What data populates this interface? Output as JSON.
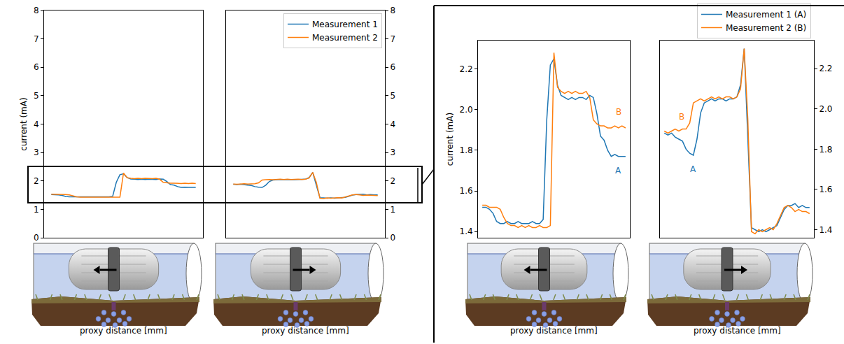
{
  "chart_data": [
    {
      "type": "line",
      "ylabel": "current (mA)",
      "xlabel": "proxy distance [mm]",
      "tick_labels": "y",
      "grid": false,
      "xlim": [
        -5,
        105
      ],
      "ylim": [
        0,
        8
      ],
      "yticks": [
        0,
        1,
        2,
        3,
        4,
        5,
        6,
        7,
        8
      ],
      "x": [
        0,
        2.5,
        5,
        7.5,
        10,
        12.5,
        15,
        17.5,
        20,
        22.5,
        25,
        27.5,
        30,
        32.5,
        35,
        37.5,
        40,
        42.5,
        45,
        47.5,
        50,
        52.5,
        55,
        57.5,
        60,
        62.5,
        65,
        67.5,
        70,
        72.5,
        75,
        77.5,
        80,
        82.5,
        85,
        87.5,
        90,
        92.5,
        95,
        97.5,
        100
      ],
      "series": [
        {
          "color": "#1f77b4",
          "values": [
            1.52,
            1.52,
            1.51,
            1.49,
            1.45,
            1.44,
            1.44,
            1.45,
            1.44,
            1.44,
            1.45,
            1.44,
            1.44,
            1.44,
            1.45,
            1.44,
            1.44,
            1.46,
            1.95,
            2.22,
            2.25,
            2.12,
            2.07,
            2.06,
            2.05,
            2.06,
            2.05,
            2.06,
            2.06,
            2.05,
            2.07,
            2.06,
            1.98,
            1.87,
            1.85,
            1.8,
            1.77,
            1.78,
            1.77,
            1.77,
            1.77
          ]
        },
        {
          "color": "#ff7f0e",
          "values": [
            1.53,
            1.53,
            1.52,
            1.52,
            1.52,
            1.51,
            1.47,
            1.44,
            1.43,
            1.43,
            1.42,
            1.43,
            1.42,
            1.43,
            1.42,
            1.42,
            1.43,
            1.42,
            1.42,
            1.43,
            2.28,
            2.11,
            2.09,
            2.08,
            2.09,
            2.08,
            2.09,
            2.08,
            2.08,
            2.09,
            2.06,
            1.95,
            1.93,
            1.92,
            1.92,
            1.91,
            1.91,
            1.92,
            1.91,
            1.92,
            1.91
          ]
        }
      ]
    },
    {
      "type": "line",
      "xlabel": "proxy distance [mm]",
      "tick_labels": "y",
      "grid": false,
      "legend": "upper right",
      "xlim": [
        -5,
        105
      ],
      "ylim": [
        0,
        8
      ],
      "yticks": [
        0,
        1,
        2,
        3,
        4,
        5,
        6,
        7,
        8
      ],
      "x": [
        0,
        2.5,
        5,
        7.5,
        10,
        12.5,
        15,
        17.5,
        20,
        22.5,
        25,
        27.5,
        30,
        32.5,
        35,
        37.5,
        40,
        42.5,
        45,
        47.5,
        50,
        52.5,
        55,
        57.5,
        60,
        62.5,
        65,
        67.5,
        70,
        72.5,
        75,
        77.5,
        80,
        82.5,
        85,
        87.5,
        90,
        92.5,
        95,
        97.5,
        100
      ],
      "series": [
        {
          "name": "Measurement 1",
          "color": "#1f77b4",
          "values": [
            1.88,
            1.87,
            1.88,
            1.86,
            1.85,
            1.84,
            1.8,
            1.78,
            1.77,
            1.85,
            1.98,
            2.03,
            2.04,
            2.05,
            2.04,
            2.05,
            2.05,
            2.04,
            2.05,
            2.05,
            2.06,
            2.12,
            2.3,
            1.85,
            1.41,
            1.4,
            1.39,
            1.4,
            1.39,
            1.4,
            1.41,
            1.42,
            1.46,
            1.5,
            1.52,
            1.52,
            1.53,
            1.51,
            1.52,
            1.51,
            1.51
          ]
        },
        {
          "name": "Measurement 2",
          "color": "#ff7f0e",
          "values": [
            1.89,
            1.88,
            1.89,
            1.9,
            1.89,
            1.9,
            1.9,
            1.93,
            2.03,
            2.04,
            2.05,
            2.04,
            2.05,
            2.06,
            2.05,
            2.06,
            2.05,
            2.06,
            2.06,
            2.05,
            2.06,
            2.1,
            2.3,
            1.95,
            1.39,
            1.38,
            1.4,
            1.39,
            1.4,
            1.41,
            1.4,
            1.43,
            1.47,
            1.51,
            1.52,
            1.51,
            1.49,
            1.5,
            1.49,
            1.49,
            1.48
          ]
        }
      ]
    },
    {
      "type": "line",
      "ylabel": "current (mA)",
      "xlabel": "proxy distance [mm]",
      "tick_labels": "y",
      "grid": false,
      "xlim": [
        -3,
        103
      ],
      "ylim": [
        1.37,
        2.34
      ],
      "yticks": [
        1.4,
        1.6,
        1.8,
        {
          "value": 2,
          "label": "2.0"
        },
        2.2
      ],
      "x": [
        0,
        2.5,
        5,
        7.5,
        10,
        12.5,
        15,
        17.5,
        20,
        22.5,
        25,
        27.5,
        30,
        32.5,
        35,
        37.5,
        40,
        42.5,
        45,
        47.5,
        50,
        52.5,
        55,
        57.5,
        60,
        62.5,
        65,
        67.5,
        70,
        72.5,
        75,
        77.5,
        80,
        82.5,
        85,
        87.5,
        90,
        92.5,
        95,
        97.5,
        100
      ],
      "series": [
        {
          "color": "#1f77b4",
          "values": [
            1.52,
            1.52,
            1.51,
            1.49,
            1.45,
            1.44,
            1.44,
            1.45,
            1.44,
            1.44,
            1.45,
            1.44,
            1.44,
            1.44,
            1.45,
            1.44,
            1.44,
            1.46,
            1.95,
            2.22,
            2.25,
            2.12,
            2.07,
            2.06,
            2.05,
            2.06,
            2.05,
            2.06,
            2.06,
            2.05,
            2.07,
            2.06,
            1.98,
            1.87,
            1.85,
            1.8,
            1.77,
            1.78,
            1.77,
            1.77,
            1.77
          ]
        },
        {
          "color": "#ff7f0e",
          "values": [
            1.53,
            1.53,
            1.52,
            1.52,
            1.52,
            1.51,
            1.47,
            1.44,
            1.43,
            1.43,
            1.42,
            1.43,
            1.42,
            1.43,
            1.42,
            1.42,
            1.43,
            1.42,
            1.42,
            1.43,
            2.28,
            2.11,
            2.09,
            2.08,
            2.09,
            2.08,
            2.09,
            2.08,
            2.08,
            2.09,
            2.06,
            1.95,
            1.93,
            1.92,
            1.92,
            1.91,
            1.91,
            1.92,
            1.91,
            1.92,
            1.91
          ]
        }
      ],
      "annotations": [
        {
          "text": "B",
          "x": 95,
          "y": 1.99,
          "color": "#ff7f0e"
        },
        {
          "text": "A",
          "x": 95,
          "y": 1.7,
          "color": "#1f77b4"
        }
      ]
    },
    {
      "type": "line",
      "xlabel": "proxy distance [mm]",
      "tick_labels": "y",
      "grid": false,
      "legend": "above right",
      "xlim": [
        -3,
        103
      ],
      "ylim": [
        1.36,
        2.34
      ],
      "yticks": [
        1.4,
        1.6,
        1.8,
        {
          "value": 2,
          "label": "2.0"
        },
        2.2
      ],
      "x": [
        0,
        2.5,
        5,
        7.5,
        10,
        12.5,
        15,
        17.5,
        20,
        22.5,
        25,
        27.5,
        30,
        32.5,
        35,
        37.5,
        40,
        42.5,
        45,
        47.5,
        50,
        52.5,
        55,
        57.5,
        60,
        62.5,
        65,
        67.5,
        70,
        72.5,
        75,
        77.5,
        80,
        82.5,
        85,
        87.5,
        90,
        92.5,
        95,
        97.5,
        100
      ],
      "series": [
        {
          "name": "Measurement 1 (A)",
          "color": "#1f77b4",
          "values": [
            1.88,
            1.87,
            1.88,
            1.86,
            1.85,
            1.84,
            1.8,
            1.78,
            1.77,
            1.85,
            1.98,
            2.03,
            2.04,
            2.05,
            2.04,
            2.05,
            2.05,
            2.04,
            2.05,
            2.05,
            2.06,
            2.12,
            2.3,
            1.85,
            1.41,
            1.4,
            1.39,
            1.4,
            1.39,
            1.4,
            1.41,
            1.42,
            1.46,
            1.5,
            1.52,
            1.52,
            1.53,
            1.51,
            1.52,
            1.51,
            1.51
          ]
        },
        {
          "name": "Measurement 2 (B)",
          "color": "#ff7f0e",
          "values": [
            1.89,
            1.88,
            1.89,
            1.9,
            1.89,
            1.9,
            1.9,
            1.93,
            2.03,
            2.04,
            2.05,
            2.04,
            2.05,
            2.06,
            2.05,
            2.06,
            2.05,
            2.06,
            2.06,
            2.05,
            2.06,
            2.1,
            2.3,
            1.95,
            1.39,
            1.38,
            1.4,
            1.39,
            1.4,
            1.41,
            1.4,
            1.43,
            1.47,
            1.51,
            1.52,
            1.51,
            1.49,
            1.5,
            1.49,
            1.49,
            1.48
          ]
        }
      ],
      "annotations": [
        {
          "text": "B",
          "x": 12,
          "y": 1.96,
          "color": "#ff7f0e"
        },
        {
          "text": "A",
          "x": 20,
          "y": 1.7,
          "color": "#1f77b4"
        }
      ]
    }
  ]
}
